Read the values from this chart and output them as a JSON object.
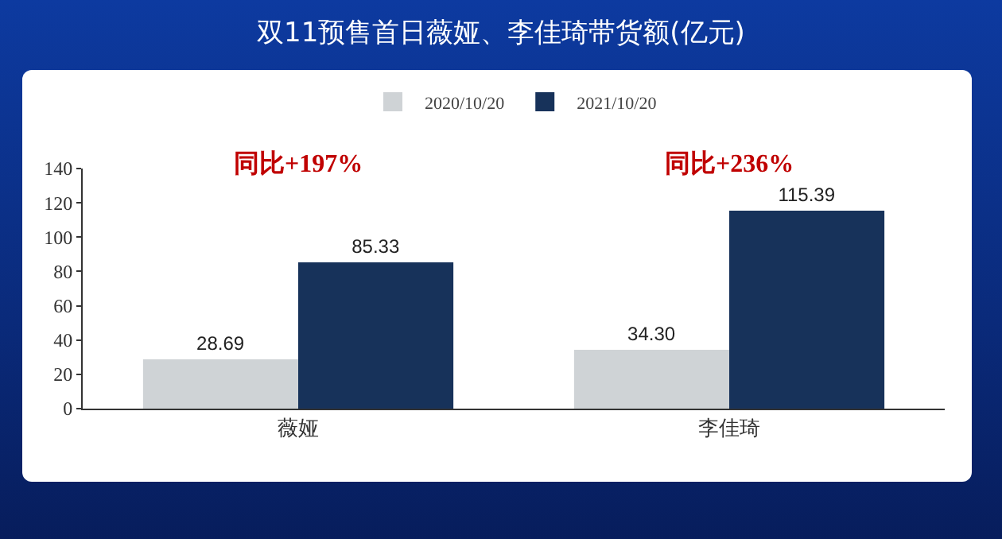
{
  "chart_data": {
    "type": "bar",
    "title": "双11预售首日薇娅、李佳琦带货额(亿元)",
    "categories": [
      "薇娅",
      "李佳琦"
    ],
    "series": [
      {
        "name": "2020/10/20",
        "color": "#cfd3d6",
        "values": [
          28.69,
          34.3
        ],
        "value_labels": [
          "28.69",
          "34.30"
        ]
      },
      {
        "name": "2021/10/20",
        "color": "#17325a",
        "values": [
          85.33,
          115.39
        ],
        "value_labels": [
          "85.33",
          "115.39"
        ]
      }
    ],
    "ylim": [
      0,
      140
    ],
    "yticks": [
      0,
      20,
      40,
      60,
      80,
      100,
      120,
      140
    ],
    "legend": "top",
    "annotations": [
      "同比+197%",
      "同比+236%"
    ]
  }
}
